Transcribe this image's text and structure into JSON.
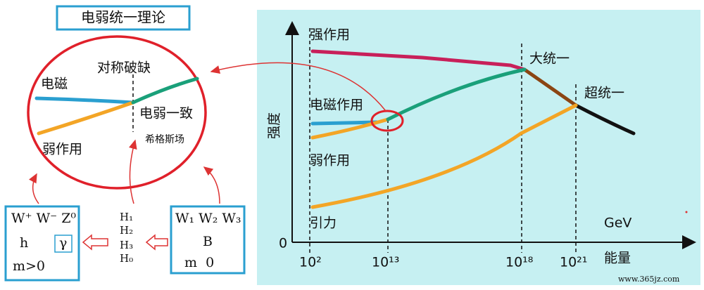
{
  "title": "电弱统一理论",
  "inset": {
    "em": "电磁",
    "breaking": "对称破缺",
    "electroweak": "电弱一致",
    "weak": "弱作用",
    "higgs": "希格斯场"
  },
  "boxes": {
    "broken": {
      "line1": "W⁺ W⁻ Z⁰",
      "h": "h",
      "gamma": "γ",
      "mass": "m>0"
    },
    "higgs": [
      "H₁",
      "H₂",
      "H₃",
      "H₀"
    ],
    "unbroken": {
      "line1": "W₁ W₂ W₃",
      "b": "B",
      "mass": "m  0"
    }
  },
  "graph": {
    "y_label": "强度",
    "origin": "0",
    "unit": "GeV",
    "x_label": "能量",
    "x_marks": [
      "10²",
      "10¹³",
      "10¹⁸",
      "10²¹"
    ],
    "strong": "强作用",
    "gut": "大统一",
    "em": "电磁作用",
    "super": "超统一",
    "weak": "弱作用",
    "gravity": "引力"
  },
  "watermark": "www.365jz.com"
}
